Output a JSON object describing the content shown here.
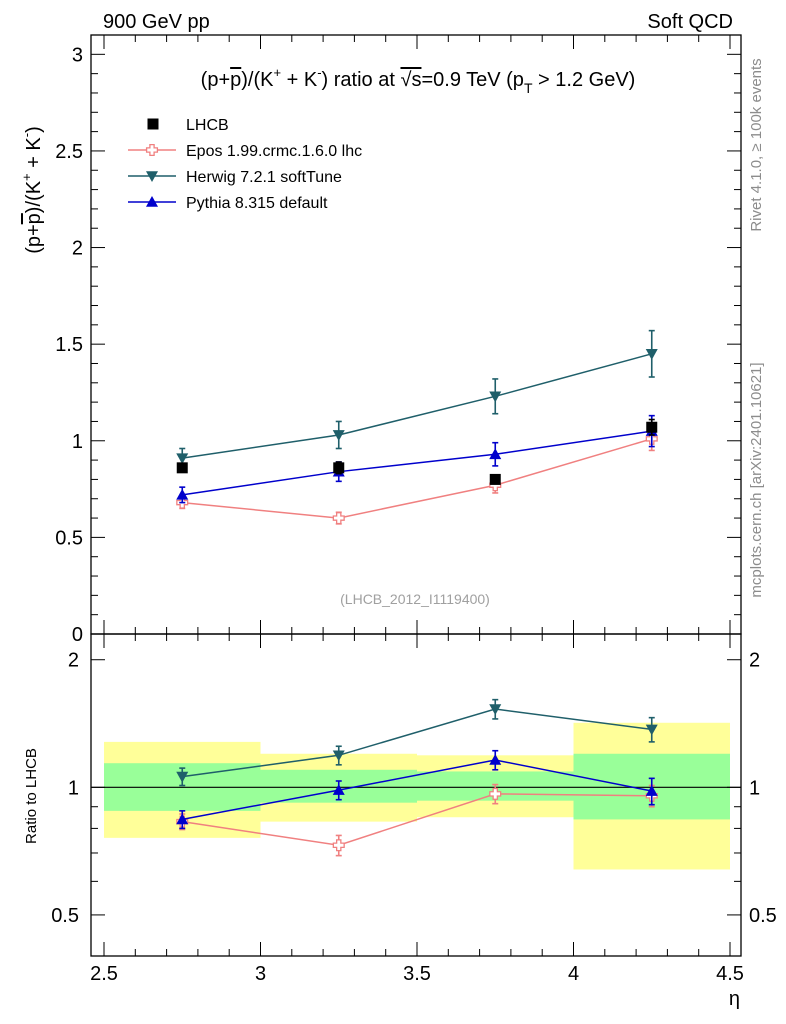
{
  "header": {
    "left": "900 GeV pp",
    "right": "Soft QCD"
  },
  "side_labels": {
    "rivet": "Rivet 4.1.0, ≥ 100k events",
    "mcplots": "mcplots.cern.ch [arXiv:2401.10621]"
  },
  "chart_data": {
    "type": "line",
    "title_parts": {
      "prefix": "(p+",
      "pbar": "p",
      "mid": ")/(K",
      "plus_sup": "+",
      "mid2": " + K",
      "minus_sup": "-",
      "suffix": ") ratio at ",
      "sqrt": "√s",
      "energy": "=0.9 TeV (p",
      "sub": "T",
      "cut": " > 1.2 GeV)"
    },
    "ylabel_parts": {
      "prefix": "(p+",
      "pbar": "p",
      "mid": ")/(K",
      "plus_sup": "+",
      "mid2": " + K",
      "minus_sup": "-",
      "suffix": ")"
    },
    "xlabel": "η",
    "ratio_ylabel": "Ratio to LHCB",
    "analysis_id": "(LHCB_2012_I1119400)",
    "xlim": [
      2.5,
      4.5
    ],
    "ylim": [
      0,
      3.1
    ],
    "ratio_ylim": [
      0.4,
      2.3
    ],
    "x_ticks": [
      "2.5",
      "3",
      "3.5",
      "4",
      "4.5"
    ],
    "y_ticks": [
      "0",
      "0.5",
      "1",
      "1.5",
      "2",
      "2.5",
      "3"
    ],
    "ratio_ticks": [
      "0.5",
      "1",
      "2"
    ],
    "bins": [
      [
        2.5,
        3.0
      ],
      [
        3.0,
        3.5
      ],
      [
        3.5,
        4.0
      ],
      [
        4.0,
        4.5
      ]
    ],
    "data": {
      "name": "LHCB",
      "x": [
        2.75,
        3.25,
        3.75,
        4.25
      ],
      "y": [
        0.86,
        0.86,
        0.8,
        1.07
      ],
      "err": [
        0.02,
        0.03,
        0.02,
        0.04
      ],
      "band_inner": [
        [
          0.88,
          1.14
        ],
        [
          0.92,
          1.1
        ],
        [
          0.93,
          1.09
        ],
        [
          0.84,
          1.2
        ]
      ],
      "band_outer": [
        [
          0.76,
          1.28
        ],
        [
          0.83,
          1.2
        ],
        [
          0.85,
          1.19
        ],
        [
          0.64,
          1.42
        ]
      ]
    },
    "series": [
      {
        "name": "Epos 1.99.crmc.1.6.0 lhc",
        "color": "#f08080",
        "marker": "open-cross",
        "x": [
          2.75,
          3.25,
          3.75,
          4.25
        ],
        "y": [
          0.68,
          0.6,
          0.77,
          1.01
        ],
        "err": [
          0.03,
          0.03,
          0.04,
          0.06
        ],
        "ratio": [
          0.83,
          0.73,
          0.965,
          0.955
        ],
        "ratio_err": [
          0.035,
          0.04,
          0.05,
          0.055
        ]
      },
      {
        "name": "Herwig 7.2.1 softTune",
        "color": "#1f5f6a",
        "marker": "triangle-down",
        "x": [
          2.75,
          3.25,
          3.75,
          4.25
        ],
        "y": [
          0.91,
          1.03,
          1.23,
          1.45
        ],
        "err": [
          0.05,
          0.07,
          0.09,
          0.12
        ],
        "ratio": [
          1.06,
          1.19,
          1.53,
          1.37
        ],
        "ratio_err": [
          0.05,
          0.06,
          0.08,
          0.09
        ]
      },
      {
        "name": "Pythia 8.315 default",
        "color": "#0000cc",
        "marker": "triangle-up",
        "x": [
          2.75,
          3.25,
          3.75,
          4.25
        ],
        "y": [
          0.72,
          0.84,
          0.93,
          1.05
        ],
        "err": [
          0.04,
          0.05,
          0.06,
          0.08
        ],
        "ratio": [
          0.84,
          0.985,
          1.16,
          0.98
        ],
        "ratio_err": [
          0.04,
          0.05,
          0.06,
          0.07
        ]
      }
    ]
  }
}
